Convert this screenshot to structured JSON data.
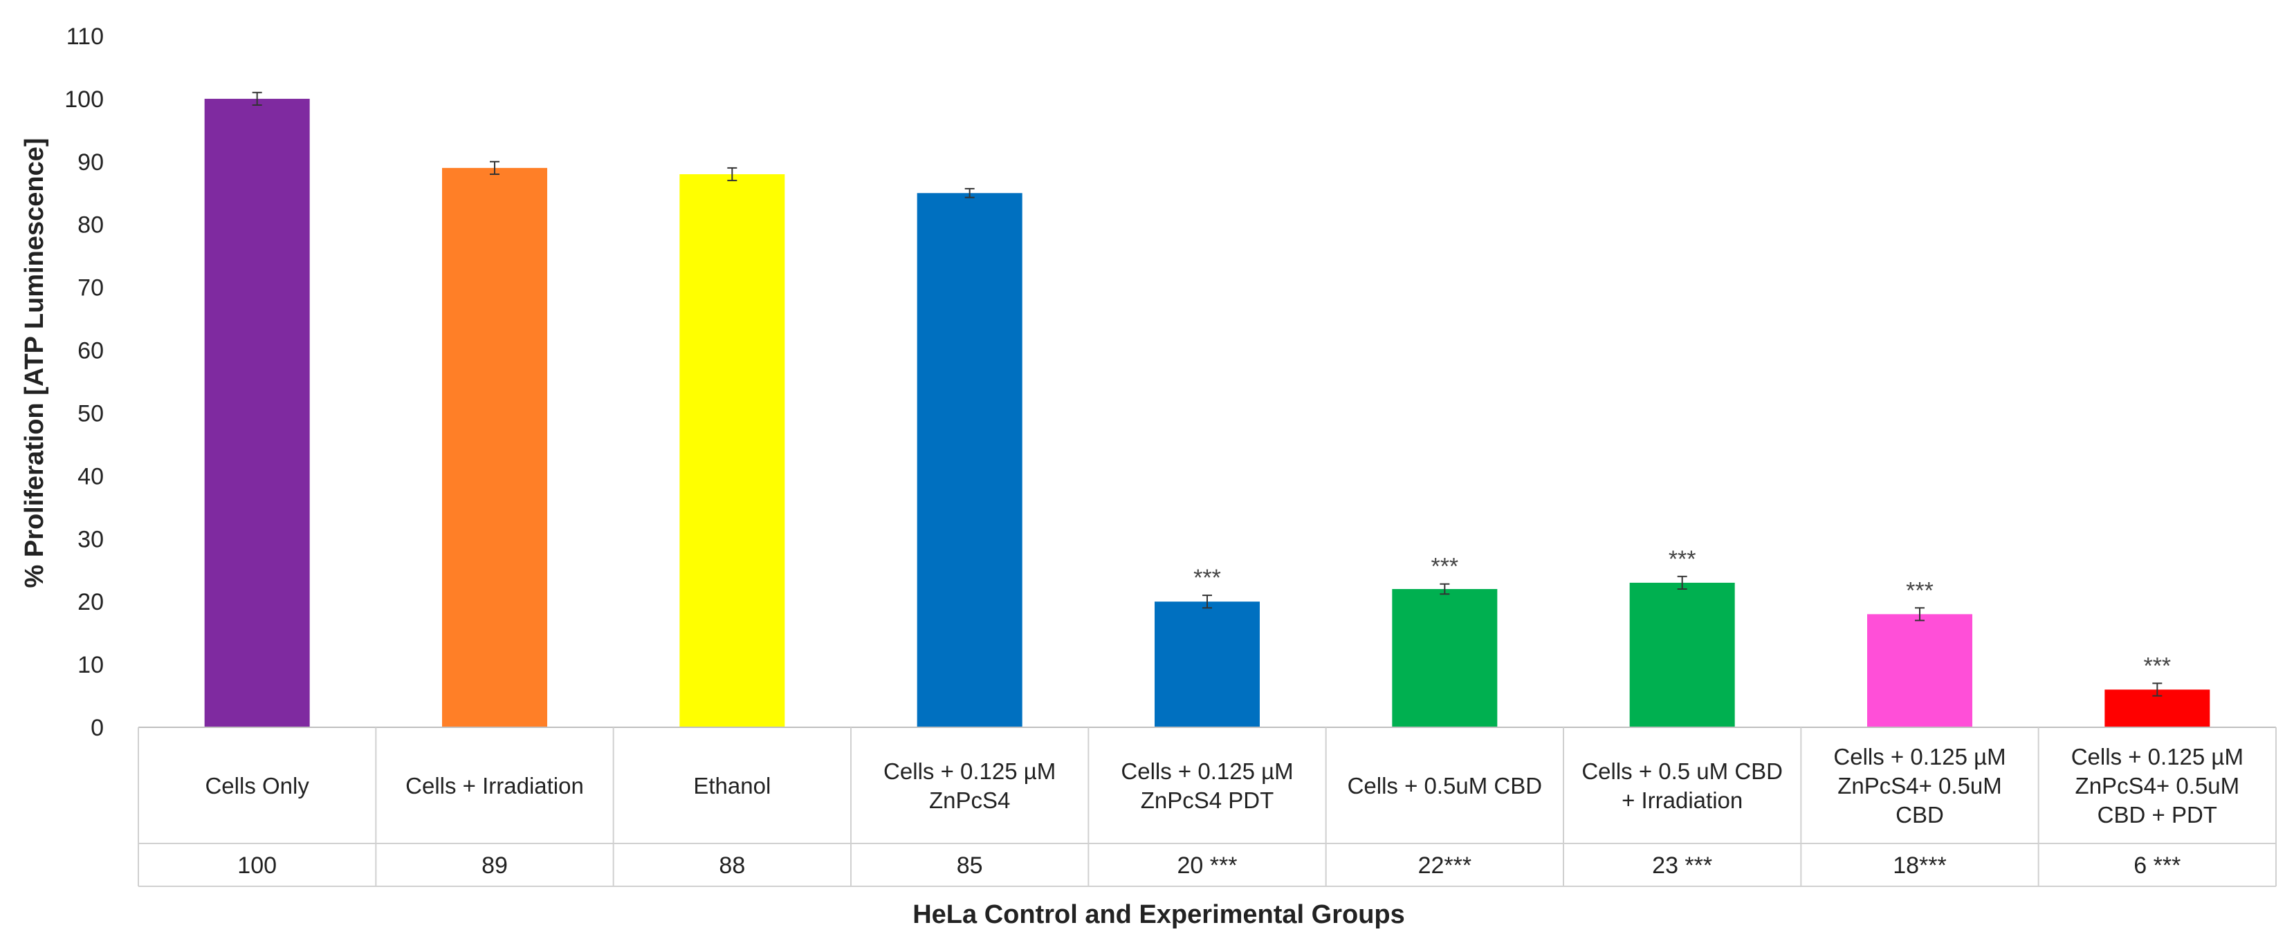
{
  "chart_data": {
    "type": "bar",
    "title": "",
    "ylabel": "% Proliferation [ATP Luminescence]",
    "xlabel": "HeLa Control and Experimental Groups",
    "ylim": [
      0,
      110
    ],
    "yticks": [
      0,
      10,
      20,
      30,
      40,
      50,
      60,
      70,
      80,
      90,
      100,
      110
    ],
    "categories": [
      [
        "Cells Only"
      ],
      [
        "Cells + Irradiation"
      ],
      [
        "Ethanol"
      ],
      [
        "Cells + 0.125 µM",
        "ZnPcS4"
      ],
      [
        "Cells + 0.125 µM",
        "ZnPcS4 PDT"
      ],
      [
        "Cells + 0.5uM CBD"
      ],
      [
        "Cells + 0.5 uM CBD",
        "+ Irradiation"
      ],
      [
        "Cells + 0.125 µM",
        "ZnPcS4+ 0.5uM",
        "CBD"
      ],
      [
        "Cells + 0.125 µM",
        "ZnPcS4+ 0.5uM",
        "CBD + PDT"
      ]
    ],
    "values": [
      100,
      89,
      88,
      85,
      20,
      22,
      23,
      18,
      6
    ],
    "errors": [
      1,
      1,
      1,
      0.7,
      1,
      0.8,
      1,
      1,
      1
    ],
    "colors": [
      "#7F2AA0",
      "#FF7F27",
      "#FFFF00",
      "#0070C0",
      "#0070C0",
      "#00B050",
      "#00B050",
      "#FF4FD8",
      "#FF0000"
    ],
    "significance": [
      "",
      "",
      "",
      "",
      "***",
      "***",
      "***",
      "***",
      "***"
    ],
    "table_values": [
      "100",
      "89",
      "88",
      "85",
      "20 ***",
      "22***",
      "23 ***",
      "18***",
      "6 ***"
    ]
  }
}
